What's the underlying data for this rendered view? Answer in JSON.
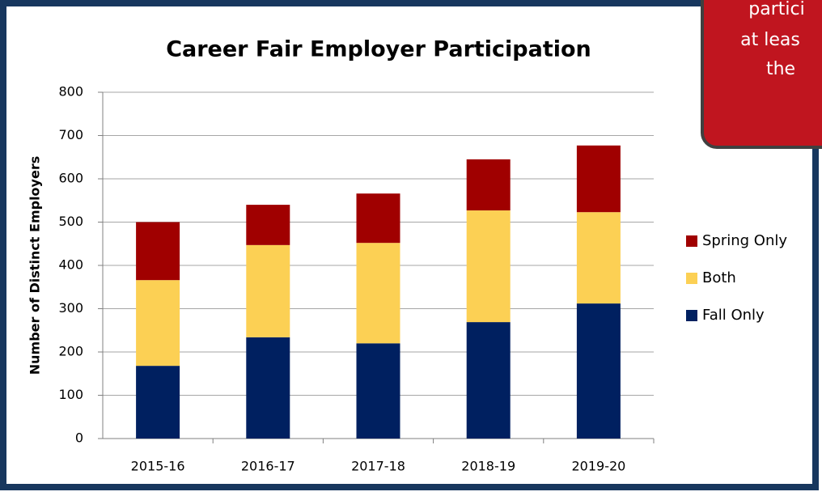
{
  "chart_data": {
    "type": "stacked_bar",
    "title": "Career Fair Employer Participation",
    "y_label": "Number of Distinct  Employers",
    "categories": [
      "2015-16",
      "2016-17",
      "2017-18",
      "2018-19",
      "2019-20"
    ],
    "series": [
      {
        "name": "Fall Only",
        "color": "#002060",
        "values": [
          168,
          234,
          220,
          269,
          312
        ]
      },
      {
        "name": "Both",
        "color": "#fcd054",
        "values": [
          198,
          213,
          232,
          258,
          211
        ]
      },
      {
        "name": "Spring Only",
        "color": "#a00000",
        "values": [
          134,
          93,
          114,
          118,
          154
        ]
      }
    ],
    "ylim": [
      0,
      800
    ],
    "yticks": [
      0,
      100,
      200,
      300,
      400,
      500,
      600,
      700,
      800
    ],
    "grid": true,
    "legend": "right"
  },
  "callout": {
    "lines": [
      "partici",
      "at leas",
      "the"
    ]
  }
}
